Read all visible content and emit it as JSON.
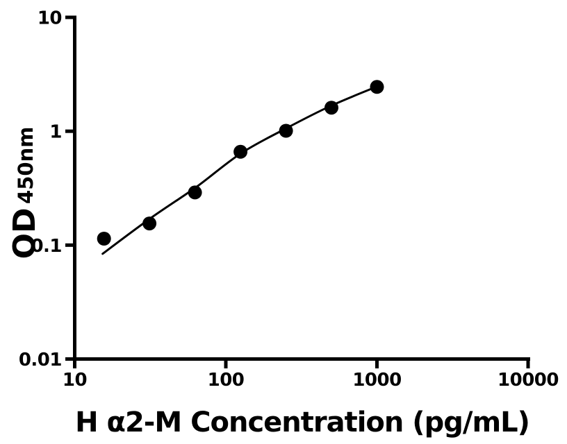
{
  "figure": {
    "background_color": "#ffffff",
    "foreground_color": "#000000"
  },
  "x_axis": {
    "title": "H α2-M Concentration (pg/mL)",
    "scale": "log10",
    "min": 10,
    "max": 10000,
    "ticks": [
      {
        "value": 10,
        "label": "10"
      },
      {
        "value": 100,
        "label": "100"
      },
      {
        "value": 1000,
        "label": "1000"
      },
      {
        "value": 10000,
        "label": "10000"
      }
    ]
  },
  "y_axis": {
    "title_main": "OD",
    "title_subscript": "450nm",
    "scale": "log10",
    "min": 0.01,
    "max": 10,
    "ticks": [
      {
        "value": 10,
        "label": "10"
      },
      {
        "value": 1,
        "label": "1"
      },
      {
        "value": 0.1,
        "label": "0.1"
      },
      {
        "value": 0.01,
        "label": "0.01"
      }
    ]
  },
  "chart_data": {
    "type": "scatter",
    "title": "",
    "xlabel": "H α2-M Concentration (pg/mL)",
    "ylabel": "OD450nm",
    "x_scale": "log",
    "y_scale": "log",
    "xlim": [
      10,
      10000
    ],
    "ylim": [
      0.01,
      10
    ],
    "grid": false,
    "legend": false,
    "points": [
      {
        "x": 15.625,
        "od": 0.114
      },
      {
        "x": 31.25,
        "od": 0.155
      },
      {
        "x": 62.5,
        "od": 0.29
      },
      {
        "x": 125,
        "od": 0.66
      },
      {
        "x": 250,
        "od": 1.01
      },
      {
        "x": 500,
        "od": 1.61
      },
      {
        "x": 1000,
        "od": 2.45
      }
    ],
    "marker": {
      "shape": "filled-circle",
      "color": "#000000",
      "radius_px": 10
    },
    "fit_curve": {
      "color": "#000000",
      "stroke_width_px": 3,
      "samples": [
        {
          "x": 15.3,
          "od": 0.084
        },
        {
          "x": 31.5,
          "od": 0.171
        },
        {
          "x": 63.4,
          "od": 0.322
        },
        {
          "x": 126,
          "od": 0.64
        },
        {
          "x": 251,
          "od": 1.06
        },
        {
          "x": 500,
          "od": 1.68
        },
        {
          "x": 995,
          "od": 2.46
        }
      ]
    }
  }
}
